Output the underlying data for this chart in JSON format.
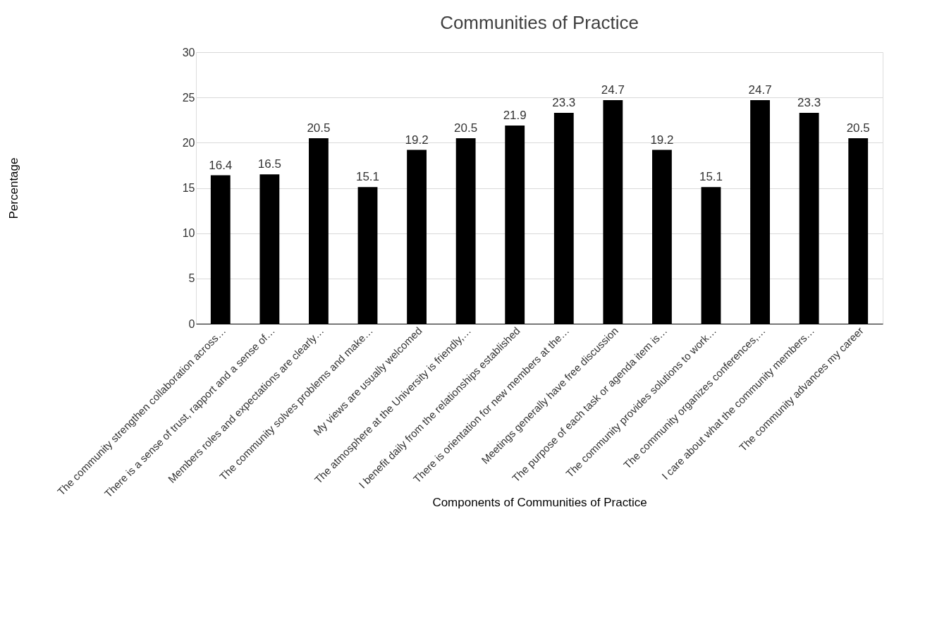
{
  "chart_data": {
    "type": "bar",
    "title": "Communities of Practice",
    "xlabel": "Components of Communities of Practice",
    "ylabel": "Percentage",
    "categories": [
      "The community strengthen collaboration across…",
      "There is a sense of trust, rapport and a sense of…",
      "Members roles and expectations are clearly…",
      "The community solves problems and make…",
      "My views are usually welcomed",
      "The atmosphere at the University is friendly,…",
      "I benefit daily from the relationships established",
      "There is orientation for new members at the…",
      "Meetings generally have free discussion",
      "The purpose of each task or agenda item is…",
      "The community provides solutions to work…",
      "The community organizes conferences,…",
      "I care about what the community members…",
      "The community advances my career"
    ],
    "values": [
      16.4,
      16.5,
      20.5,
      15.1,
      19.2,
      20.5,
      21.9,
      23.3,
      24.7,
      19.2,
      15.1,
      24.7,
      23.3,
      20.5
    ],
    "color": "#000000",
    "ylim": [
      0,
      30
    ],
    "yticks": [
      0,
      5,
      10,
      15,
      20,
      25,
      30
    ],
    "grid": "y",
    "data_labels": true
  }
}
